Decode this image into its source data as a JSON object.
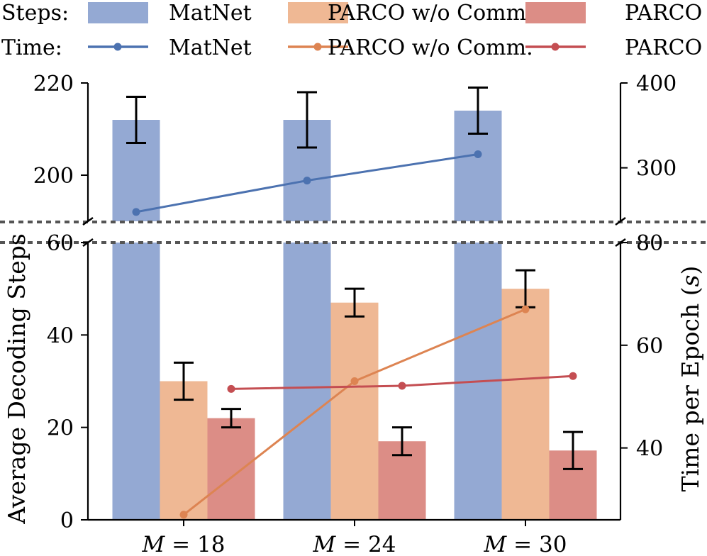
{
  "chart_data": {
    "type": "bar",
    "categories": [
      "M = 18",
      "M = 24",
      "M = 30"
    ],
    "category_math": [
      {
        "var": "M",
        "rest": " = 18"
      },
      {
        "var": "M",
        "rest": " = 24"
      },
      {
        "var": "M",
        "rest": " = 30"
      }
    ],
    "bar_series": [
      {
        "name": "MatNet",
        "color": "#94a9d3",
        "values": [
          212,
          212,
          214
        ],
        "err_low": [
          207,
          206,
          209
        ],
        "err_high": [
          217,
          218,
          219
        ]
      },
      {
        "name": "PARCO w/o Comm.",
        "color": "#efb894",
        "values": [
          30,
          47,
          50
        ],
        "err_low": [
          26,
          44,
          46
        ],
        "err_high": [
          34,
          50,
          54
        ]
      },
      {
        "name": "PARCO",
        "color": "#dc8d86",
        "values": [
          22,
          17,
          15
        ],
        "err_low": [
          20,
          14,
          11
        ],
        "err_high": [
          24,
          20,
          19
        ]
      }
    ],
    "line_series": [
      {
        "name": "MatNet",
        "color": "#4c72b0",
        "values": [
          248,
          285,
          316
        ]
      },
      {
        "name": "PARCO w/o Comm.",
        "color": "#dd8452",
        "values": [
          27,
          53,
          67
        ]
      },
      {
        "name": "PARCO",
        "color": "#c44e52",
        "values": [
          51.5,
          52.1,
          54
        ]
      }
    ],
    "ylabel": "Average Decoding Steps",
    "y2label_text": "Time per Epoch (",
    "y2label_unit": "s",
    "y2label_close": ")",
    "left_axis_lower": {
      "range": [
        0,
        60
      ],
      "ticks": [
        0,
        20,
        40,
        60
      ]
    },
    "left_axis_upper": {
      "range": [
        190,
        220
      ],
      "ticks": [
        200,
        220
      ]
    },
    "right_axis_lower": {
      "range": [
        26,
        80
      ],
      "ticks": [
        40,
        60,
        80
      ]
    },
    "right_axis_upper": {
      "range": [
        237,
        400
      ],
      "ticks": [
        300,
        400
      ]
    },
    "legend": {
      "placement": "top",
      "steps_label": "Steps:",
      "time_label": "Time:",
      "entries": [
        "MatNet",
        "PARCO w/o Comm.",
        "PARCO"
      ]
    }
  }
}
